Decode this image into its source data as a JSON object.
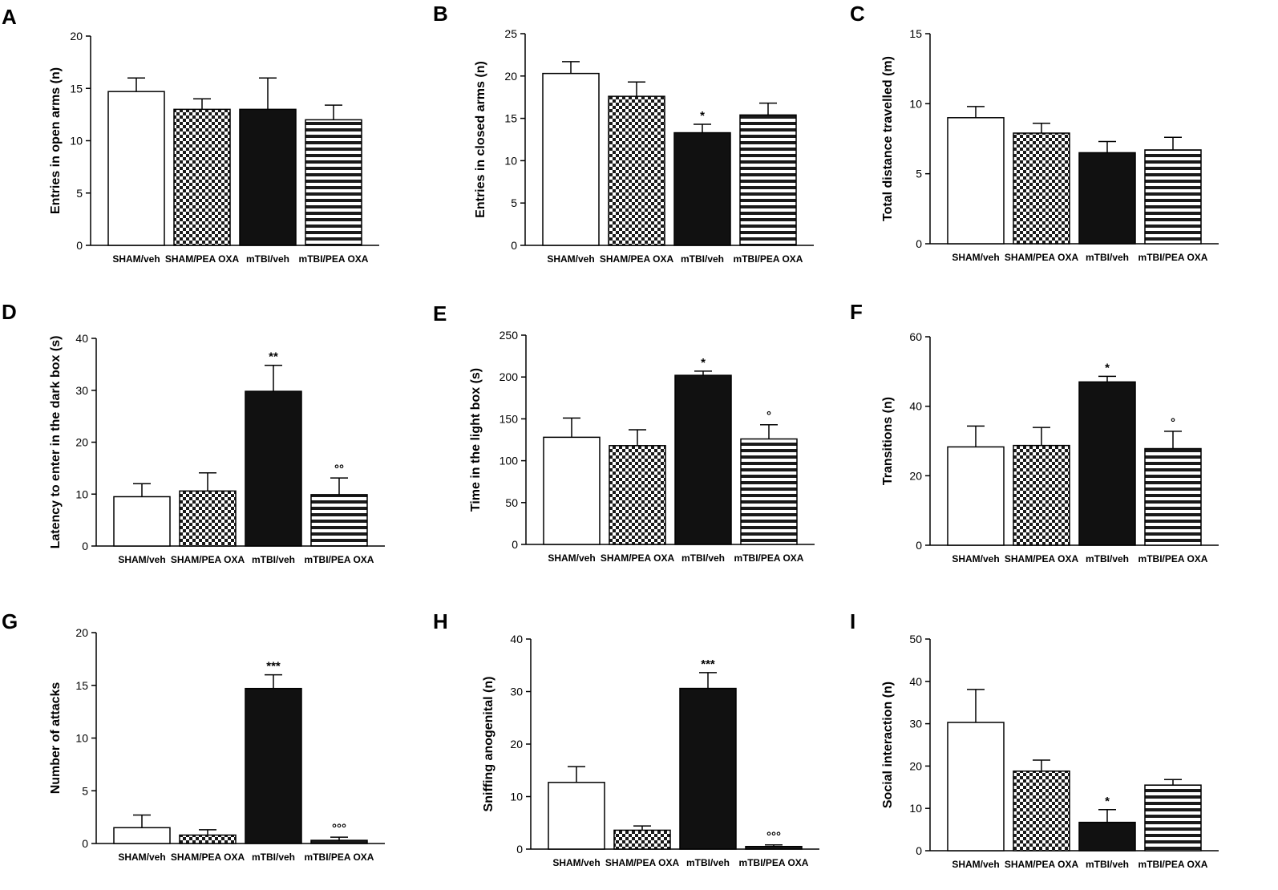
{
  "figure": {
    "title": ""
  },
  "chart_data": [
    {
      "panel": "A",
      "type": "bar",
      "ylabel": "Entries in open arms (n)",
      "ylim": [
        0,
        20
      ],
      "yticks": [
        0,
        5,
        10,
        15,
        20
      ],
      "categories": [
        "SHAM/veh",
        "SHAM/PEA OXA",
        "mTBI/veh",
        "mTBI/PEA OXA"
      ],
      "values": [
        14.7,
        13.0,
        13.0,
        12.0
      ],
      "errors": [
        1.3,
        1.0,
        3.0,
        1.4
      ],
      "annotations": [
        "",
        "",
        "",
        ""
      ]
    },
    {
      "panel": "B",
      "type": "bar",
      "ylabel": "Entries in closed arms (n)",
      "ylim": [
        0,
        25
      ],
      "yticks": [
        0,
        5,
        10,
        15,
        20,
        25
      ],
      "categories": [
        "SHAM/veh",
        "SHAM/PEA OXA",
        "mTBI/veh",
        "mTBI/PEA OXA"
      ],
      "values": [
        20.3,
        17.6,
        13.3,
        15.4
      ],
      "errors": [
        1.4,
        1.7,
        1.0,
        1.4
      ],
      "annotations": [
        "",
        "",
        "*",
        ""
      ]
    },
    {
      "panel": "C",
      "type": "bar",
      "ylabel": "Total distance travelled (m)",
      "ylim": [
        0,
        15
      ],
      "yticks": [
        0,
        5,
        10,
        15
      ],
      "categories": [
        "SHAM/veh",
        "SHAM/PEA OXA",
        "mTBI/veh",
        "mTBI/PEA OXA"
      ],
      "values": [
        9.0,
        7.9,
        6.5,
        6.7
      ],
      "errors": [
        0.8,
        0.7,
        0.8,
        0.9
      ],
      "annotations": [
        "",
        "",
        "",
        ""
      ]
    },
    {
      "panel": "D",
      "type": "bar",
      "ylabel": "Latency to enter in the dark box (s)",
      "ylim": [
        0,
        40
      ],
      "yticks": [
        0,
        10,
        20,
        30,
        40
      ],
      "categories": [
        "SHAM/veh",
        "SHAM/PEA OXA",
        "mTBI/veh",
        "mTBI/PEA OXA"
      ],
      "values": [
        9.5,
        10.6,
        29.8,
        9.9
      ],
      "errors": [
        2.5,
        3.5,
        5.0,
        3.2
      ],
      "annotations": [
        "",
        "",
        "**",
        "°°"
      ]
    },
    {
      "panel": "E",
      "type": "bar",
      "ylabel": "Time in the light box (s)",
      "ylim": [
        0,
        250
      ],
      "yticks": [
        0,
        50,
        100,
        150,
        200,
        250
      ],
      "categories": [
        "SHAM/veh",
        "SHAM/PEA OXA",
        "mTBI/veh",
        "mTBI/PEA OXA"
      ],
      "values": [
        128,
        118,
        202,
        126
      ],
      "errors": [
        23,
        19,
        5,
        17
      ],
      "annotations": [
        "",
        "",
        "*",
        "°"
      ]
    },
    {
      "panel": "F",
      "type": "bar",
      "ylabel": "Transitions (n)",
      "ylim": [
        0,
        60
      ],
      "yticks": [
        0,
        20,
        40,
        60
      ],
      "categories": [
        "SHAM/veh",
        "SHAM/PEA OXA",
        "mTBI/veh",
        "mTBI/PEA OXA"
      ],
      "values": [
        28.3,
        28.7,
        47.0,
        27.8
      ],
      "errors": [
        6.0,
        5.2,
        1.6,
        5.0
      ],
      "annotations": [
        "",
        "",
        "*",
        "°"
      ]
    },
    {
      "panel": "G",
      "type": "bar",
      "ylabel": "Number of attacks",
      "ylim": [
        0,
        20
      ],
      "yticks": [
        0,
        5,
        10,
        15,
        20
      ],
      "categories": [
        "SHAM/veh",
        "SHAM/PEA OXA",
        "mTBI/veh",
        "mTBI/PEA OXA"
      ],
      "values": [
        1.5,
        0.8,
        14.7,
        0.3
      ],
      "errors": [
        1.2,
        0.5,
        1.3,
        0.3
      ],
      "annotations": [
        "",
        "",
        "***",
        "°°°"
      ]
    },
    {
      "panel": "H",
      "type": "bar",
      "ylabel": "Sniffing anogenital (n)",
      "ylim": [
        0,
        40
      ],
      "yticks": [
        0,
        10,
        20,
        30,
        40
      ],
      "categories": [
        "SHAM/veh",
        "SHAM/PEA OXA",
        "mTBI/veh",
        "mTBI/PEA OXA"
      ],
      "values": [
        12.7,
        3.6,
        30.6,
        0.5
      ],
      "errors": [
        3.0,
        0.8,
        3.0,
        0.3
      ],
      "annotations": [
        "",
        "",
        "***",
        "°°°"
      ]
    },
    {
      "panel": "I",
      "type": "bar",
      "ylabel": "Social interaction (n)",
      "ylim": [
        0,
        50
      ],
      "yticks": [
        0,
        10,
        20,
        30,
        40,
        50
      ],
      "categories": [
        "SHAM/veh",
        "SHAM/PEA OXA",
        "mTBI/veh",
        "mTBI/PEA OXA"
      ],
      "values": [
        30.3,
        18.8,
        6.7,
        15.5
      ],
      "errors": [
        7.8,
        2.6,
        3.0,
        1.3
      ],
      "annotations": [
        "",
        "",
        "*",
        ""
      ]
    }
  ]
}
